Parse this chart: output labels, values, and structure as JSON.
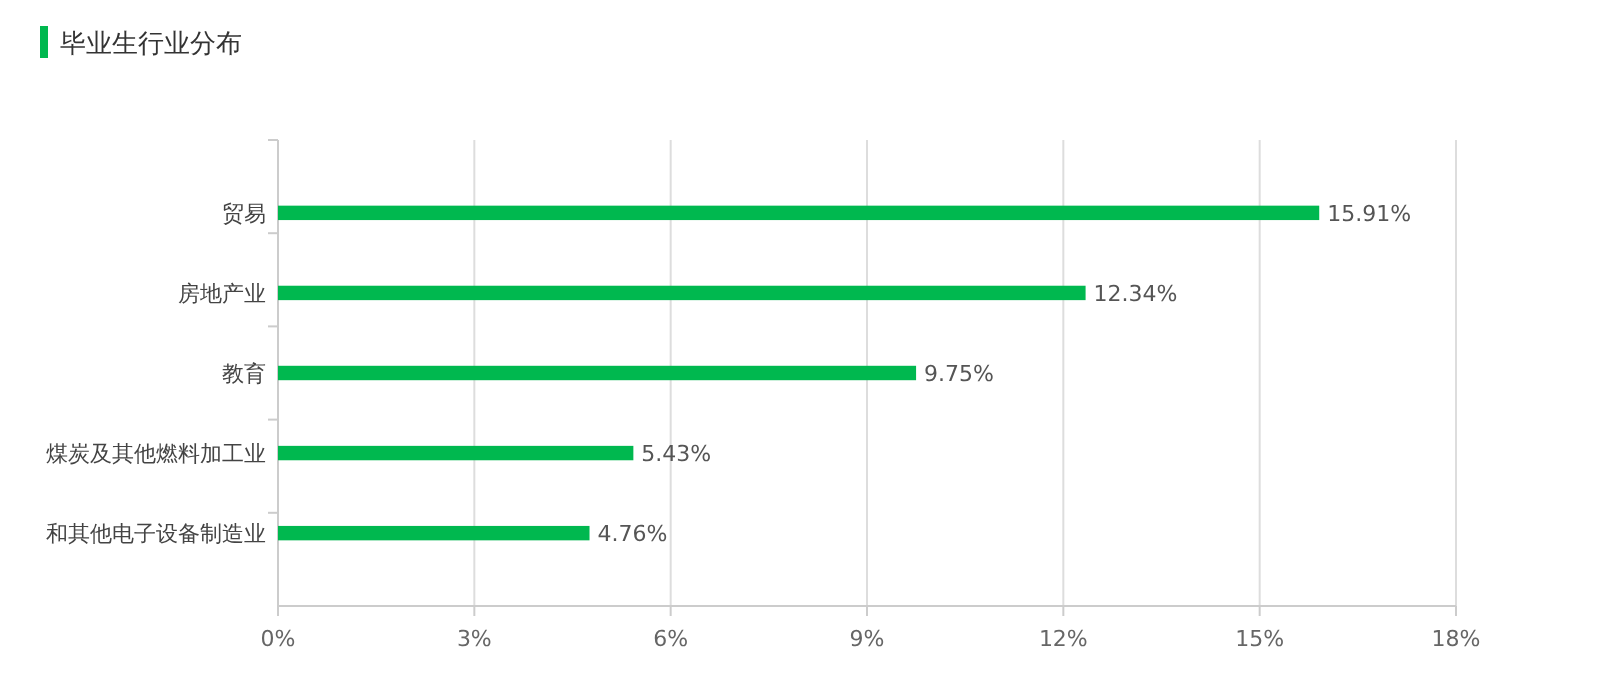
{
  "chart_data": {
    "type": "bar",
    "orientation": "horizontal",
    "title": "毕业生行业分布",
    "categories": [
      "贸易",
      "房地产业",
      "教育",
      "煤炭及其他燃料加工业",
      "和其他电子设备制造业"
    ],
    "values": [
      15.91,
      12.34,
      9.75,
      5.43,
      4.76
    ],
    "value_labels": [
      "15.91%",
      "12.34%",
      "9.75%",
      "5.43%",
      "4.76%"
    ],
    "color": "#00b84f",
    "xlim": [
      0,
      18
    ],
    "xticks": [
      {
        "value": 0,
        "label": "0%"
      },
      {
        "value": 3,
        "label": "3%"
      },
      {
        "value": 6,
        "label": "6%"
      },
      {
        "value": 9,
        "label": "9%"
      },
      {
        "value": 12,
        "label": "12%"
      },
      {
        "value": 15,
        "label": "15%"
      },
      {
        "value": 18,
        "label": "18%"
      }
    ],
    "grid": "x"
  }
}
